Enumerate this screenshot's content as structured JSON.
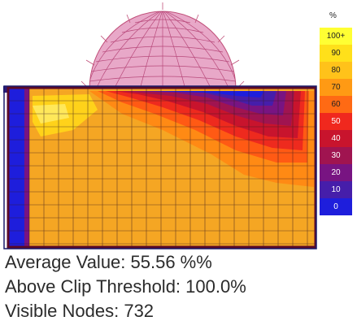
{
  "legend": {
    "unit": "%",
    "bins": [
      {
        "label": "100+",
        "color": "#ffff33",
        "text": "#222222"
      },
      {
        "label": "90",
        "color": "#ffe01a",
        "text": "#222222"
      },
      {
        "label": "80",
        "color": "#ffc21a",
        "text": "#222222"
      },
      {
        "label": "70",
        "color": "#ff9a14",
        "text": "#222222"
      },
      {
        "label": "60",
        "color": "#ff6a14",
        "text": "#222222"
      },
      {
        "label": "50",
        "color": "#f0281e",
        "text": "#ffffff"
      },
      {
        "label": "40",
        "color": "#c8142d",
        "text": "#ffffff"
      },
      {
        "label": "30",
        "color": "#a01450",
        "text": "#ffffff"
      },
      {
        "label": "20",
        "color": "#781482",
        "text": "#ffffff"
      },
      {
        "label": "10",
        "color": "#461eaa",
        "text": "#ffffff"
      },
      {
        "label": "0",
        "color": "#1e1edc",
        "text": "#ffffff"
      }
    ]
  },
  "stats": {
    "average": "Average Value: 55.56 %%",
    "clip": "Above Clip Threshold: 100.0%",
    "nodes": "Visible Nodes: 732"
  }
}
